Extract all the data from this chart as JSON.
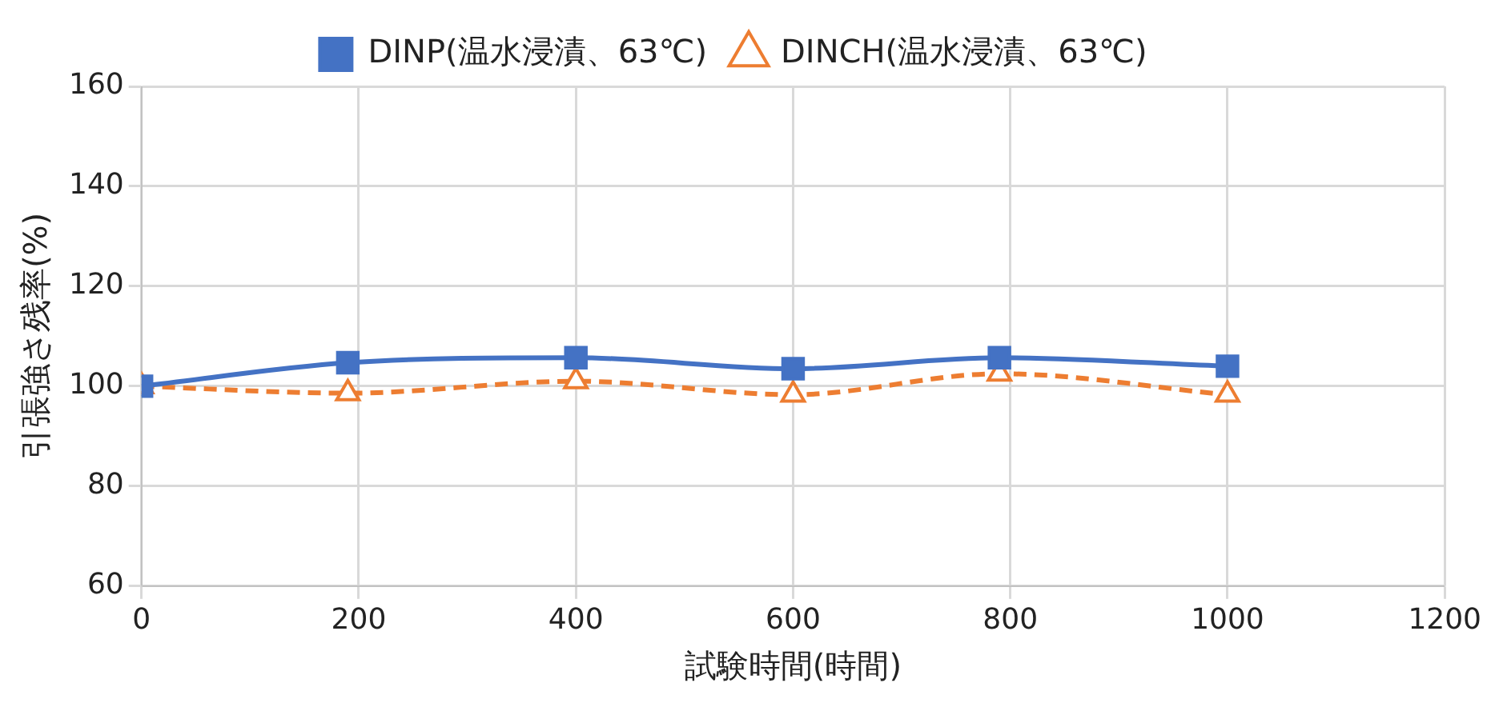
{
  "chart_data": {
    "type": "line",
    "xlabel": "試験時間(時間)",
    "ylabel": "引張強さ残率(%)",
    "xlim": [
      0,
      1200
    ],
    "xticks": [
      0,
      200,
      400,
      600,
      800,
      1000,
      1200
    ],
    "ylim": [
      60,
      160
    ],
    "yticks": [
      60,
      80,
      100,
      120,
      140,
      160
    ],
    "grid": true,
    "legend": "top",
    "series": [
      {
        "name": "DINP(温水浸漬、63℃)",
        "color": "#4472c4",
        "marker": "square",
        "line_style": "solid",
        "x": [
          0,
          190,
          400,
          600,
          790,
          1000
        ],
        "values": [
          100,
          104.7,
          105.7,
          103.5,
          105.7,
          104
        ]
      },
      {
        "name": "DINCH(温水浸漬、63℃)",
        "color": "#ed7d31",
        "marker": "triangle",
        "line_style": "dashed",
        "x": [
          0,
          190,
          400,
          600,
          790,
          1000
        ],
        "values": [
          100,
          98.6,
          101,
          98.3,
          102.5,
          98.3
        ]
      }
    ]
  }
}
